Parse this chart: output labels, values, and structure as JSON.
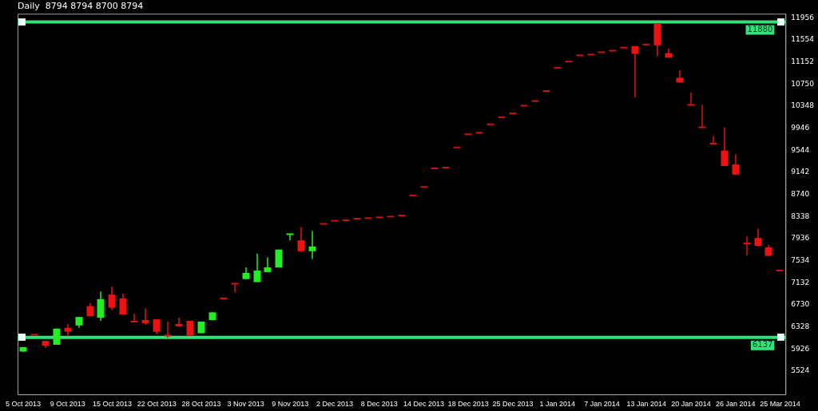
{
  "chart_data": {
    "type": "candlestick",
    "title": "Daily  8794 8794 8700 8794",
    "categories": [
      "5 Oct 2013",
      null,
      null,
      null,
      "9 Oct 2013",
      null,
      null,
      null,
      "15 Oct 2013",
      null,
      null,
      null,
      "22 Oct 2013",
      null,
      null,
      null,
      "28 Oct 2013",
      null,
      null,
      null,
      "3 Nov 2013",
      null,
      null,
      null,
      "9 Nov 2013",
      null,
      null,
      null,
      "2 Dec 2013",
      null,
      null,
      null,
      "8 Dec 2013",
      null,
      null,
      null,
      "14 Dec 2013",
      null,
      null,
      null,
      "18 Dec 2013",
      null,
      null,
      null,
      "25 Dec 2013",
      null,
      null,
      null,
      "1 Jan 2014",
      null,
      null,
      null,
      "7 Jan 2014",
      null,
      null,
      null,
      "13 Jan 2014",
      null,
      null,
      null,
      "20 Jan 2014",
      null,
      null,
      null,
      "26 Jan 2014",
      null,
      null,
      null,
      "25 Mar 2014"
    ],
    "ohlc": [
      [
        5880,
        5965,
        5875,
        5960
      ],
      [
        6186,
        6186,
        6186,
        6186
      ],
      [
        6073,
        6073,
        5946,
        5989
      ],
      [
        6003,
        6298,
        6003,
        6298
      ],
      [
        6313,
        6383,
        6158,
        6242
      ],
      [
        6355,
        6510,
        6313,
        6510
      ],
      [
        6707,
        6763,
        6524,
        6524
      ],
      [
        6496,
        6975,
        6440,
        6834
      ],
      [
        6918,
        7059,
        6637,
        6679
      ],
      [
        6848,
        6933,
        6552,
        6552
      ],
      [
        6425,
        6566,
        6425,
        6425
      ],
      [
        6453,
        6665,
        6369,
        6397
      ],
      [
        6467,
        6467,
        6200,
        6242
      ],
      [
        6172,
        6425,
        6129,
        6172
      ],
      [
        6383,
        6496,
        6341,
        6341
      ],
      [
        6440,
        6440,
        6172,
        6172
      ],
      [
        6214,
        6425,
        6214,
        6425
      ],
      [
        6453,
        6594,
        6453,
        6594
      ],
      [
        6848,
        6848,
        6848,
        6848
      ],
      [
        7116,
        7116,
        6961,
        7116
      ],
      [
        7200,
        7412,
        7200,
        7313
      ],
      [
        7144,
        7665,
        7144,
        7355
      ],
      [
        7327,
        7595,
        7327,
        7412
      ],
      [
        7412,
        7736,
        7412,
        7736
      ],
      [
        8017,
        8017,
        7905,
        8017
      ],
      [
        7905,
        8144,
        7693,
        7707
      ],
      [
        7707,
        8074,
        7566,
        7792
      ],
      [
        8205,
        8205,
        8205,
        8205
      ],
      [
        8261,
        8261,
        8261,
        8261
      ],
      [
        8271,
        8271,
        8271,
        8271
      ],
      [
        8299,
        8299,
        8299,
        8299
      ],
      [
        8309,
        8309,
        8309,
        8309
      ],
      [
        8323,
        8323,
        8323,
        8323
      ],
      [
        8337,
        8337,
        8337,
        8337
      ],
      [
        8356,
        8356,
        8356,
        8356
      ],
      [
        8722,
        8722,
        8722,
        8722
      ],
      [
        8877,
        8877,
        8877,
        8877
      ],
      [
        9215,
        9215,
        9215,
        9215
      ],
      [
        9229,
        9229,
        9229,
        9229
      ],
      [
        9596,
        9596,
        9596,
        9596
      ],
      [
        9835,
        9835,
        9835,
        9835
      ],
      [
        9863,
        9863,
        9863,
        9863
      ],
      [
        10018,
        10018,
        10018,
        10018
      ],
      [
        10145,
        10145,
        10145,
        10145
      ],
      [
        10215,
        10215,
        10215,
        10215
      ],
      [
        10356,
        10356,
        10356,
        10356
      ],
      [
        10441,
        10441,
        10441,
        10441
      ],
      [
        10624,
        10624,
        10624,
        10624
      ],
      [
        11047,
        11047,
        11047,
        11047
      ],
      [
        11159,
        11159,
        11159,
        11159
      ],
      [
        11272,
        11272,
        11272,
        11272
      ],
      [
        11286,
        11286,
        11286,
        11286
      ],
      [
        11329,
        11329,
        11329,
        11329
      ],
      [
        11357,
        11357,
        11357,
        11357
      ],
      [
        11413,
        11413,
        11413,
        11413
      ],
      [
        11441,
        11441,
        10511,
        11300
      ],
      [
        11469,
        11469,
        11469,
        11469
      ],
      [
        11850,
        11850,
        11258,
        11455
      ],
      [
        11314,
        11399,
        11230,
        11230
      ],
      [
        10864,
        11004,
        10779,
        10779
      ],
      [
        10370,
        10596,
        10370,
        10370
      ],
      [
        9962,
        10370,
        9962,
        9962
      ],
      [
        9666,
        9807,
        9666,
        9666
      ],
      [
        9539,
        9962,
        9257,
        9257
      ],
      [
        9286,
        9469,
        9102,
        9102
      ],
      [
        7848,
        7975,
        7623,
        7848
      ],
      [
        7947,
        8116,
        7792,
        7806
      ],
      [
        7778,
        7820,
        7623,
        7623
      ],
      [
        7355,
        7355,
        7355,
        7355
      ]
    ],
    "colors": [
      "#22ee22",
      "#dd1111",
      "#ee1111",
      "#22ee22",
      "#ee1111",
      "#22ee22",
      "#ee1111",
      "#22ee22",
      "#ee1111",
      "#ee1111",
      "#dd1111",
      "#ee1111",
      "#ee1111",
      "#dd1111",
      "#ee1111",
      "#ee1111",
      "#22ee22",
      "#22ee22",
      "#dd1111",
      "#dd1111",
      "#22ee22",
      "#22ee22",
      "#22ee22",
      "#22ee22",
      "#22ee22",
      "#ee1111",
      "#22ee22",
      "#cc1111",
      "#cc1111",
      "#cc1111",
      "#cc1111",
      "#cc1111",
      "#cc1111",
      "#cc1111",
      "#cc1111",
      "#cc1111",
      "#cc1111",
      "#cc1111",
      "#cc1111",
      "#cc1111",
      "#cc1111",
      "#cc1111",
      "#cc1111",
      "#cc1111",
      "#cc1111",
      "#cc1111",
      "#cc1111",
      "#cc1111",
      "#cc1111",
      "#cc1111",
      "#cc1111",
      "#cc1111",
      "#cc1111",
      "#cc1111",
      "#cc1111",
      "#ee1111",
      "#cc1111",
      "#ee1111",
      "#ee1111",
      "#ee1111",
      "#dd1111",
      "#dd1111",
      "#dd1111",
      "#ee1111",
      "#ee1111",
      "#dd1111",
      "#ee1111",
      "#ee1111",
      "#cc1111"
    ],
    "ylim": [
      5100,
      12030
    ],
    "yticks": [
      5524,
      5926,
      6328,
      6730,
      7132,
      7534,
      7936,
      8338,
      8740,
      9142,
      9544,
      9946,
      10348,
      10750,
      11152,
      11554,
      11956
    ],
    "ref_lines": [
      {
        "axis": "y",
        "value": 11880,
        "label": "11880",
        "color": "#33e07a"
      },
      {
        "axis": "y",
        "value": 6137,
        "label": "6137",
        "color": "#33e07a"
      }
    ]
  }
}
